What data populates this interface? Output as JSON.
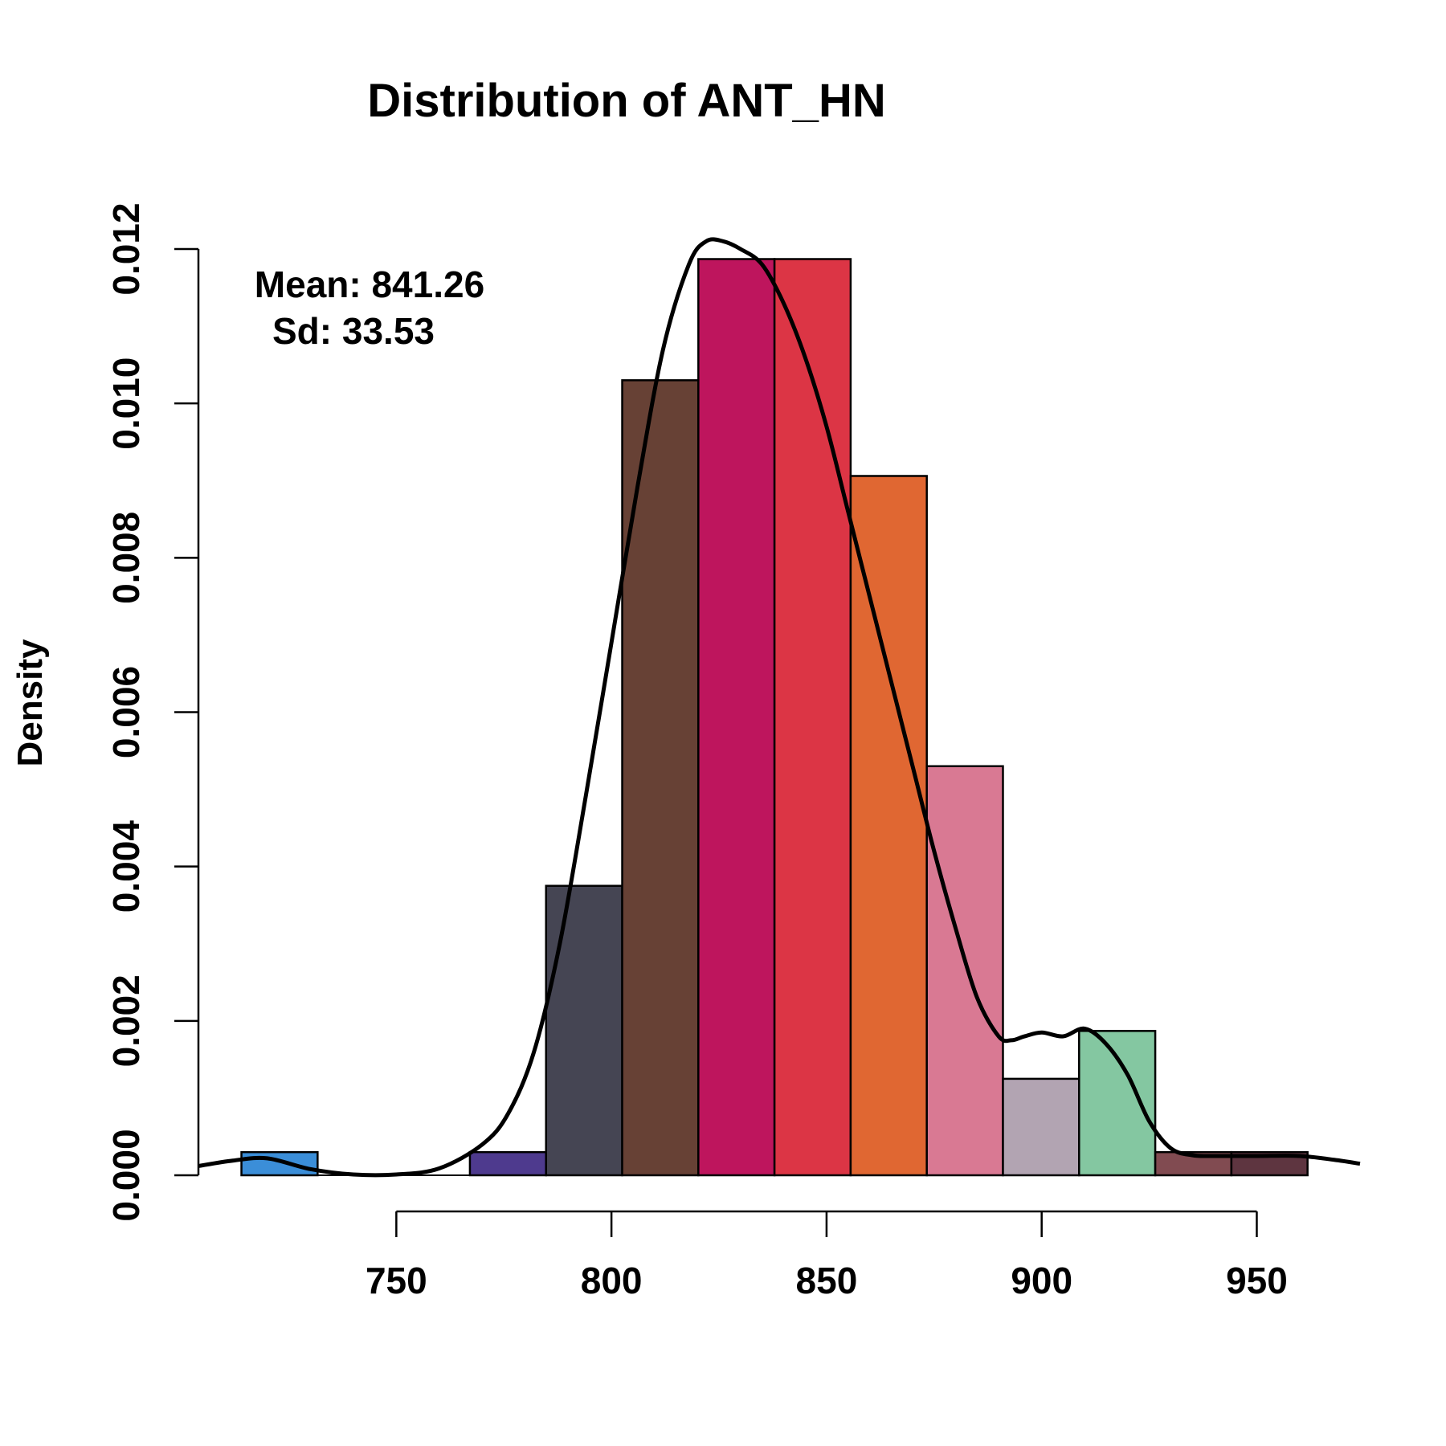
{
  "chart_data": {
    "type": "bar",
    "title": "Distribution of ANT_HN",
    "xlabel": "",
    "ylabel": "Density",
    "xlim": [
      704,
      974
    ],
    "ylim": [
      0,
      0.012
    ],
    "x_ticks": [
      "750",
      "800",
      "850",
      "900",
      "950"
    ],
    "x_tick_values": [
      750,
      800,
      850,
      900,
      950
    ],
    "y_ticks": [
      "0.000",
      "0.002",
      "0.004",
      "0.006",
      "0.008",
      "0.010",
      "0.012"
    ],
    "y_tick_values": [
      0,
      0.002,
      0.004,
      0.006,
      0.008,
      0.01,
      0.012
    ],
    "bins": [
      {
        "start": 714.0,
        "end": 731.7,
        "density": 0.0003,
        "color": "#3B8ED8"
      },
      {
        "start": 731.7,
        "end": 749.4,
        "density": 0.0,
        "color": "#FFFFFF"
      },
      {
        "start": 749.4,
        "end": 767.1,
        "density": 0.0,
        "color": "#FFFFFF"
      },
      {
        "start": 767.1,
        "end": 784.8,
        "density": 0.0003,
        "color": "#4E3A8E"
      },
      {
        "start": 784.8,
        "end": 802.5,
        "density": 0.00375,
        "color": "#454553"
      },
      {
        "start": 802.5,
        "end": 820.2,
        "density": 0.0103,
        "color": "#674135"
      },
      {
        "start": 820.2,
        "end": 837.9,
        "density": 0.01187,
        "color": "#BE155D"
      },
      {
        "start": 837.9,
        "end": 855.6,
        "density": 0.01187,
        "color": "#DC3545"
      },
      {
        "start": 855.6,
        "end": 873.3,
        "density": 0.00906,
        "color": "#E06732"
      },
      {
        "start": 873.3,
        "end": 891.0,
        "density": 0.0053,
        "color": "#D97993"
      },
      {
        "start": 891.0,
        "end": 908.7,
        "density": 0.00125,
        "color": "#B2A4B2"
      },
      {
        "start": 908.7,
        "end": 926.4,
        "density": 0.00187,
        "color": "#84C7A1"
      },
      {
        "start": 926.4,
        "end": 944.1,
        "density": 0.0003,
        "color": "#814B51"
      },
      {
        "start": 944.1,
        "end": 961.8,
        "density": 0.0003,
        "color": "#5E3540"
      }
    ],
    "density_curve": {
      "x": [
        704,
        712,
        720,
        730,
        740,
        750,
        760,
        770,
        776,
        782,
        788,
        794,
        800,
        806,
        812,
        818,
        822,
        826,
        830,
        835,
        840,
        845,
        850,
        855,
        860,
        865,
        870,
        875,
        880,
        885,
        890,
        893,
        896,
        900,
        905,
        910,
        915,
        920,
        925,
        930,
        935,
        940,
        950,
        960,
        968,
        974
      ],
      "y": [
        0.00012,
        0.00019,
        0.00022,
        8e-05,
        1e-05,
        1e-05,
        9e-05,
        0.0004,
        0.0008,
        0.0016,
        0.003,
        0.0049,
        0.0069,
        0.0089,
        0.0107,
        0.0118,
        0.0121,
        0.0121,
        0.012,
        0.0118,
        0.0113,
        0.0106,
        0.0097,
        0.0086,
        0.0075,
        0.0064,
        0.0053,
        0.0042,
        0.0032,
        0.0023,
        0.0018,
        0.00175,
        0.0018,
        0.00185,
        0.0018,
        0.0019,
        0.0017,
        0.0013,
        0.0007,
        0.00035,
        0.00026,
        0.00025,
        0.00025,
        0.00025,
        0.0002,
        0.00015
      ]
    },
    "annotations": [
      "Mean: 841.26",
      "Sd: 33.53"
    ],
    "grid": false
  }
}
